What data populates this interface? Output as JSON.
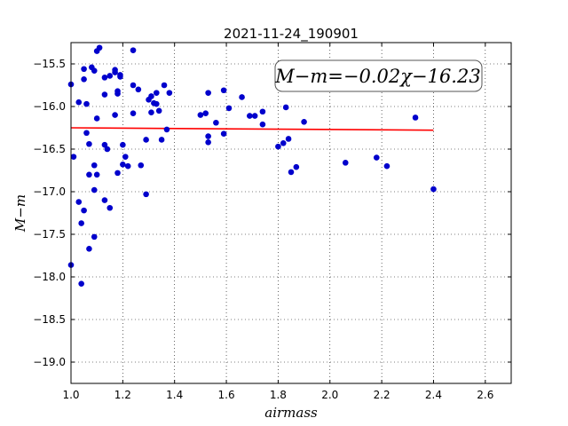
{
  "chart_data": {
    "type": "scatter",
    "title": "2021-11-24_190901",
    "xlabel": "airmass",
    "ylabel": "M−m",
    "xlim": [
      1.0,
      2.7
    ],
    "ylim": [
      -19.25,
      -15.25
    ],
    "y_inverted": true,
    "grid": true,
    "grid_style": "dotted",
    "x_ticks": [
      1.0,
      1.2,
      1.4,
      1.6,
      1.8,
      2.0,
      2.2,
      2.4,
      2.6
    ],
    "x_tick_labels": [
      "1.0",
      "1.2",
      "1.4",
      "1.6",
      "1.8",
      "2.0",
      "2.2",
      "2.4",
      "2.6"
    ],
    "y_ticks": [
      -15.5,
      -16.0,
      -16.5,
      -17.0,
      -17.5,
      -18.0,
      -18.5,
      -19.0
    ],
    "y_tick_labels": [
      "−15.5",
      "−16.0",
      "−16.5",
      "−17.0",
      "−17.5",
      "−18.0",
      "−18.5",
      "−19.0"
    ],
    "annotation": "M−m=−0.02χ−16.23",
    "point_color": "#0000cc",
    "fit_color": "#ff0000",
    "fit": {
      "slope": -0.02,
      "intercept": -16.23,
      "x_range": [
        1.0,
        2.4
      ]
    },
    "points": [
      [
        1.0,
        -15.74
      ],
      [
        1.0,
        -17.86
      ],
      [
        1.01,
        -16.59
      ],
      [
        1.03,
        -15.95
      ],
      [
        1.03,
        -17.12
      ],
      [
        1.04,
        -17.37
      ],
      [
        1.04,
        -18.08
      ],
      [
        1.05,
        -15.68
      ],
      [
        1.05,
        -15.56
      ],
      [
        1.05,
        -17.22
      ],
      [
        1.06,
        -15.97
      ],
      [
        1.06,
        -16.31
      ],
      [
        1.07,
        -16.44
      ],
      [
        1.07,
        -16.8
      ],
      [
        1.07,
        -17.67
      ],
      [
        1.08,
        -15.54
      ],
      [
        1.09,
        -15.58
      ],
      [
        1.09,
        -16.69
      ],
      [
        1.09,
        -16.98
      ],
      [
        1.09,
        -17.53
      ],
      [
        1.1,
        -15.35
      ],
      [
        1.1,
        -16.14
      ],
      [
        1.1,
        -16.8
      ],
      [
        1.11,
        -15.31
      ],
      [
        1.13,
        -15.86
      ],
      [
        1.13,
        -16.45
      ],
      [
        1.13,
        -17.1
      ],
      [
        1.13,
        -15.66
      ],
      [
        1.14,
        -16.5
      ],
      [
        1.15,
        -17.19
      ],
      [
        1.15,
        -15.64
      ],
      [
        1.17,
        -15.57
      ],
      [
        1.17,
        -16.1
      ],
      [
        1.17,
        -15.6
      ],
      [
        1.18,
        -15.85
      ],
      [
        1.18,
        -15.82
      ],
      [
        1.18,
        -16.78
      ],
      [
        1.19,
        -15.63
      ],
      [
        1.19,
        -15.65
      ],
      [
        1.2,
        -16.45
      ],
      [
        1.2,
        -16.68
      ],
      [
        1.21,
        -16.59
      ],
      [
        1.22,
        -16.7
      ],
      [
        1.24,
        -15.75
      ],
      [
        1.24,
        -16.08
      ],
      [
        1.24,
        -15.34
      ],
      [
        1.26,
        -15.8
      ],
      [
        1.27,
        -16.69
      ],
      [
        1.29,
        -16.39
      ],
      [
        1.29,
        -17.03
      ],
      [
        1.3,
        -15.92
      ],
      [
        1.31,
        -15.88
      ],
      [
        1.31,
        -16.07
      ],
      [
        1.32,
        -15.96
      ],
      [
        1.33,
        -15.97
      ],
      [
        1.33,
        -15.84
      ],
      [
        1.34,
        -16.05
      ],
      [
        1.35,
        -16.39
      ],
      [
        1.36,
        -15.75
      ],
      [
        1.37,
        -16.27
      ],
      [
        1.38,
        -15.84
      ],
      [
        1.5,
        -16.1
      ],
      [
        1.52,
        -16.08
      ],
      [
        1.53,
        -16.35
      ],
      [
        1.53,
        -16.42
      ],
      [
        1.53,
        -15.84
      ],
      [
        1.56,
        -16.19
      ],
      [
        1.59,
        -15.81
      ],
      [
        1.59,
        -16.32
      ],
      [
        1.61,
        -16.02
      ],
      [
        1.66,
        -15.89
      ],
      [
        1.69,
        -16.11
      ],
      [
        1.71,
        -16.11
      ],
      [
        1.74,
        -16.06
      ],
      [
        1.74,
        -16.21
      ],
      [
        1.8,
        -16.47
      ],
      [
        1.82,
        -16.43
      ],
      [
        1.83,
        -16.01
      ],
      [
        1.84,
        -16.38
      ],
      [
        1.85,
        -16.77
      ],
      [
        1.87,
        -16.71
      ],
      [
        1.9,
        -16.18
      ],
      [
        2.06,
        -16.66
      ],
      [
        2.18,
        -16.6
      ],
      [
        2.22,
        -16.7
      ],
      [
        2.33,
        -16.13
      ],
      [
        2.4,
        -16.97
      ]
    ]
  }
}
